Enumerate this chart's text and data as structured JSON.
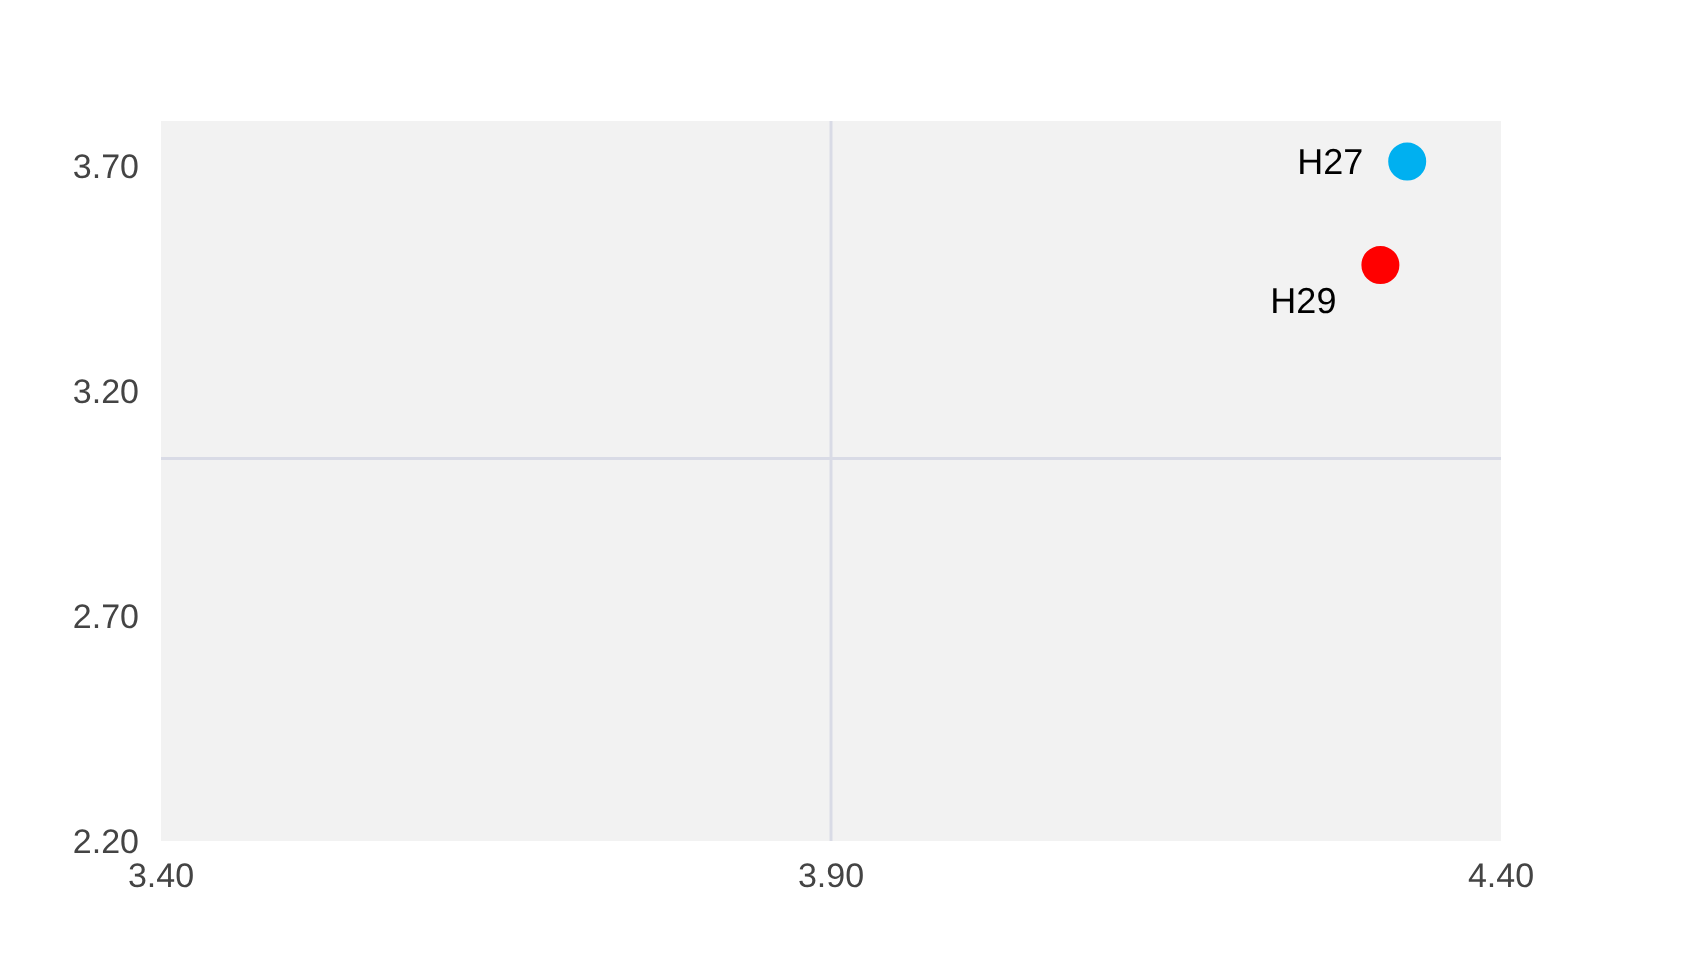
{
  "chart_data": {
    "type": "scatter",
    "xlim": [
      3.4,
      4.4
    ],
    "ylim": [
      2.2,
      3.8
    ],
    "xticks": [
      {
        "value": 3.4,
        "label": "3.40"
      },
      {
        "value": 3.9,
        "label": "3.90"
      },
      {
        "value": 4.4,
        "label": "4.40"
      }
    ],
    "yticks": [
      {
        "value": 2.2,
        "label": "2.20"
      },
      {
        "value": 2.7,
        "label": "2.70"
      },
      {
        "value": 3.2,
        "label": "3.20"
      },
      {
        "value": 3.7,
        "label": "3.70"
      }
    ],
    "grid": false,
    "marker": "circle",
    "series": [
      {
        "name": "H27",
        "color": "#00b0f0",
        "x": [
          4.33
        ],
        "values": [
          3.71
        ]
      },
      {
        "name": "H29",
        "color": "#ff0000",
        "x": [
          4.31
        ],
        "values": [
          3.48
        ]
      }
    ],
    "ref_lines": [
      {
        "axis": "x",
        "value": 3.9,
        "color": "#d9dbe6"
      },
      {
        "axis": "y",
        "value": 3.05,
        "color": "#d9dbe6"
      }
    ]
  }
}
